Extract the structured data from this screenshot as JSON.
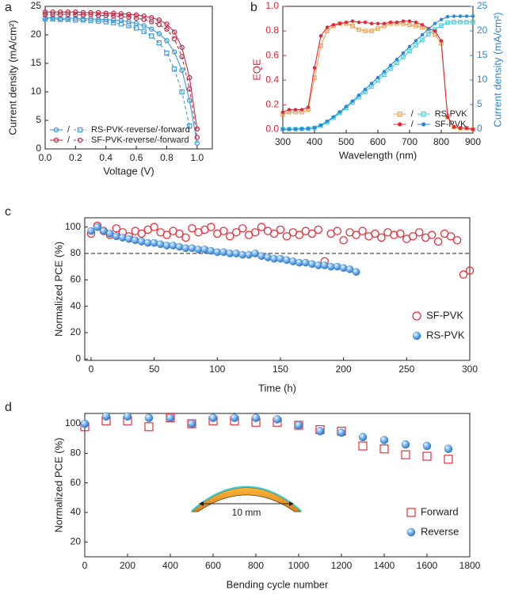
{
  "chart_data": [
    {
      "type": "line",
      "label": "a",
      "xlabel": "Voltage (V)",
      "ylabel": "Current density (mA/cm²)",
      "xlim": [
        0,
        1.1
      ],
      "xticks": [
        {
          "value": 0,
          "label": "0.0"
        },
        0.2,
        0.4,
        0.6,
        0.8,
        {
          "value": 1,
          "label": "1.0"
        }
      ],
      "ylim": [
        0,
        25
      ],
      "yticks": [
        0,
        5,
        10,
        15,
        20,
        25
      ],
      "legend": "lower left",
      "legend_separator": "/",
      "x": [
        0,
        0.05,
        0.1,
        0.15,
        0.2,
        0.25,
        0.3,
        0.35,
        0.4,
        0.45,
        0.5,
        0.55,
        0.6,
        0.65,
        0.7,
        0.75,
        0.8,
        0.85,
        0.9,
        0.95,
        1.0,
        1.05
      ],
      "series": [
        {
          "name": "RS-PVK-reverse/-forward",
          "color": "#3f9ad8",
          "marker": "circle-open",
          "dash": false,
          "values": [
            23.0,
            23.0,
            22.9,
            22.9,
            22.9,
            22.8,
            22.8,
            22.7,
            22.7,
            22.6,
            22.5,
            22.3,
            22.0,
            21.6,
            21.0,
            20.2,
            19.0,
            17.0,
            13.8,
            8.5,
            1.0,
            null
          ]
        },
        {
          "name": "RS-PVK-reverse/-forward",
          "color": "#3f9ad8",
          "marker": "square-open",
          "dash": true,
          "values": [
            22.8,
            22.8,
            22.7,
            22.7,
            22.6,
            22.6,
            22.5,
            22.4,
            22.3,
            22.1,
            21.9,
            21.6,
            21.2,
            20.6,
            19.8,
            18.6,
            16.8,
            14.0,
            10.0,
            4.0,
            null,
            null
          ]
        },
        {
          "name": "SF-PVK-reverse/-forward",
          "color": "#c0304a",
          "marker": "circle-open",
          "dash": false,
          "values": [
            24.0,
            24.0,
            24.0,
            24.0,
            24.0,
            23.9,
            23.9,
            23.9,
            23.8,
            23.8,
            23.7,
            23.6,
            23.5,
            23.3,
            23.0,
            22.6,
            21.9,
            20.5,
            17.8,
            12.5,
            3.5,
            null
          ]
        },
        {
          "name": "SF-PVK-reverse/-forward",
          "color": "#c0304a",
          "marker": "circle-open",
          "dash": true,
          "values": [
            23.6,
            23.6,
            23.6,
            23.6,
            23.5,
            23.5,
            23.5,
            23.4,
            23.4,
            23.3,
            23.2,
            23.1,
            22.9,
            22.7,
            22.3,
            21.8,
            21.0,
            19.3,
            16.2,
            10.5,
            2.0,
            null
          ]
        }
      ]
    },
    {
      "type": "line",
      "label": "b",
      "xlabel": "Wavelength (nm)",
      "ylabel": "EQE",
      "y2label": "Current density (mA/cm²)",
      "ylabel_color": "#d9263c",
      "y2label_color": "#2e86d6",
      "xlim": [
        300,
        900
      ],
      "xticks": [
        300,
        400,
        500,
        600,
        700,
        800,
        900
      ],
      "ylim": [
        -0.03,
        1.0
      ],
      "yticks": [
        {
          "value": 0,
          "label": "0.0"
        },
        0.2,
        0.4,
        0.6,
        0.8,
        {
          "value": 1,
          "label": "1.0"
        }
      ],
      "y2lim": [
        -0.8,
        25
      ],
      "y2ticks": [
        0,
        5,
        10,
        15,
        20,
        25
      ],
      "legend": "lower right",
      "legend_separator": "/",
      "x": [
        300,
        320,
        340,
        360,
        380,
        400,
        420,
        440,
        460,
        480,
        500,
        520,
        540,
        560,
        580,
        600,
        620,
        640,
        660,
        680,
        700,
        720,
        740,
        760,
        780,
        800,
        820,
        840,
        860,
        880,
        900
      ],
      "series": [
        {
          "name": "RS-PVK",
          "color": "#f0a050",
          "marker": "square-open",
          "dash": false,
          "values": [
            0.12,
            0.14,
            0.14,
            0.14,
            0.16,
            0.42,
            0.68,
            0.8,
            0.84,
            0.86,
            0.86,
            0.84,
            0.81,
            0.8,
            0.8,
            0.82,
            0.84,
            0.86,
            0.86,
            0.86,
            0.85,
            0.84,
            0.83,
            0.8,
            0.77,
            0.7,
            0.1,
            0.02,
            0.01,
            0.01,
            0.0
          ]
        },
        {
          "name": "RS-PVK",
          "color": "#45cfe0",
          "marker": "square-open",
          "dash": false,
          "axis": "y2",
          "values": [
            0,
            0,
            0,
            0.05,
            0.1,
            0.25,
            0.7,
            1.4,
            2.3,
            3.3,
            4.3,
            5.4,
            6.5,
            7.6,
            8.7,
            9.9,
            11.1,
            12.3,
            13.5,
            14.7,
            15.9,
            17.1,
            18.2,
            19.3,
            20.3,
            21.1,
            21.7,
            21.8,
            21.8,
            21.8,
            21.8
          ]
        },
        {
          "name": "SF-PVK",
          "color": "#e0283c",
          "marker": "circle-filled",
          "dash": false,
          "values": [
            0.14,
            0.16,
            0.16,
            0.16,
            0.18,
            0.5,
            0.76,
            0.83,
            0.85,
            0.86,
            0.87,
            0.88,
            0.87,
            0.87,
            0.86,
            0.86,
            0.86,
            0.87,
            0.87,
            0.88,
            0.88,
            0.87,
            0.85,
            0.82,
            0.8,
            0.72,
            0.1,
            0.02,
            0.01,
            0.01,
            0.0
          ]
        },
        {
          "name": "SF-PVK",
          "color": "#2e86d6",
          "marker": "circle-filled",
          "dash": false,
          "axis": "y2",
          "values": [
            0,
            0,
            0,
            0.05,
            0.1,
            0.3,
            0.8,
            1.6,
            2.5,
            3.5,
            4.6,
            5.7,
            6.9,
            8.1,
            9.3,
            10.5,
            11.7,
            13.0,
            14.2,
            15.5,
            16.8,
            18.0,
            19.2,
            20.4,
            21.5,
            22.3,
            22.9,
            23.0,
            23.0,
            23.0,
            23.0
          ]
        }
      ]
    },
    {
      "type": "scatter",
      "label": "c",
      "xlabel": "Time (h)",
      "ylabel": "Normalized PCE (%)",
      "xlim": [
        -5,
        300
      ],
      "xticks": [
        0,
        50,
        100,
        150,
        200,
        250,
        300
      ],
      "ylim": [
        -1,
        107
      ],
      "yticks": [
        0,
        20,
        40,
        60,
        80,
        100
      ],
      "reference_line": 80,
      "legend": "lower right",
      "series": [
        {
          "name": "SF-PVK",
          "color": "#e8303a",
          "marker": "circle-open",
          "x": [
            0,
            5,
            10,
            15,
            20,
            25,
            30,
            35,
            40,
            45,
            50,
            55,
            60,
            65,
            70,
            75,
            80,
            85,
            90,
            95,
            100,
            105,
            110,
            115,
            120,
            125,
            130,
            135,
            140,
            145,
            150,
            155,
            160,
            165,
            170,
            175,
            180,
            185,
            190,
            195,
            200,
            205,
            210,
            215,
            220,
            225,
            230,
            235,
            240,
            245,
            250,
            255,
            260,
            265,
            270,
            275,
            280,
            285,
            290,
            295,
            300
          ],
          "values": [
            95,
            101,
            97,
            94,
            99,
            96,
            93,
            97,
            95,
            98,
            100,
            96,
            94,
            97,
            95,
            92,
            99,
            96,
            98,
            100,
            95,
            97,
            93,
            96,
            99,
            94,
            96,
            100,
            97,
            95,
            98,
            93,
            96,
            94,
            97,
            95,
            98,
            74,
            95,
            97,
            90,
            96,
            94,
            97,
            93,
            95,
            92,
            96,
            94,
            95,
            91,
            93,
            96,
            92,
            94,
            89,
            95,
            93,
            90,
            64,
            67
          ]
        },
        {
          "name": "RS-PVK",
          "color": "#3a8fe0",
          "marker": "sphere",
          "x": [
            0,
            5,
            10,
            15,
            20,
            25,
            30,
            35,
            40,
            45,
            50,
            55,
            60,
            65,
            70,
            75,
            80,
            85,
            90,
            95,
            100,
            105,
            110,
            115,
            120,
            125,
            130,
            135,
            140,
            145,
            150,
            155,
            160,
            165,
            170,
            175,
            180,
            185,
            190,
            195,
            200,
            205,
            210
          ],
          "values": [
            97,
            100,
            97,
            95,
            93,
            92,
            91,
            90,
            89,
            88,
            88,
            87,
            86,
            86,
            85,
            84,
            84,
            83,
            83,
            82,
            81,
            81,
            80,
            80,
            79,
            79,
            80,
            78,
            77,
            76,
            76,
            75,
            74,
            73,
            73,
            72,
            71,
            71,
            70,
            70,
            69,
            68,
            66
          ]
        }
      ]
    },
    {
      "type": "scatter",
      "label": "d",
      "xlabel": "Bending cycle number",
      "ylabel": "Normalized PCE (%)",
      "xlim": [
        0,
        1800
      ],
      "xticks": [
        0,
        200,
        400,
        600,
        800,
        1000,
        1200,
        1400,
        1600,
        1800
      ],
      "ylim": [
        10,
        107
      ],
      "yticks": [
        20,
        40,
        60,
        80,
        100
      ],
      "legend": "lower right",
      "annotation": "10 mm",
      "series": [
        {
          "name": "Forward",
          "color": "#e8303a",
          "marker": "square-open",
          "x": [
            0,
            100,
            200,
            300,
            400,
            500,
            600,
            700,
            800,
            900,
            1000,
            1100,
            1200,
            1300,
            1400,
            1500,
            1600,
            1700
          ],
          "values": [
            98,
            102,
            102,
            98,
            104,
            100,
            102,
            102,
            101,
            101,
            99,
            96,
            95,
            85,
            83,
            79,
            78,
            76
          ]
        },
        {
          "name": "Reverse",
          "color": "#3a8fe0",
          "marker": "sphere",
          "x": [
            0,
            100,
            200,
            300,
            400,
            500,
            600,
            700,
            800,
            900,
            1000,
            1100,
            1200,
            1300,
            1400,
            1500,
            1600,
            1700
          ],
          "values": [
            100,
            105,
            105,
            104,
            104,
            100,
            104,
            104,
            104,
            103,
            99,
            95,
            94,
            91,
            89,
            86,
            85,
            83
          ]
        }
      ]
    }
  ]
}
